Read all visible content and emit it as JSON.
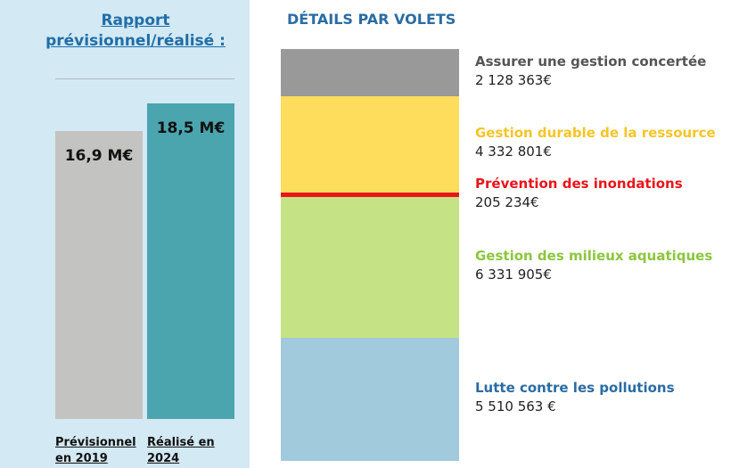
{
  "chart_data": [
    {
      "type": "bar",
      "title": "Rapport prévisionnel/réalisé :",
      "categories": [
        "Prévisionnel en 2019",
        "Réalisé en 2024"
      ],
      "values": [
        16.9,
        18.5
      ],
      "value_labels": [
        "16,9 M€",
        "18,5 M€"
      ],
      "colors": [
        "#c3c3c1",
        "#4aa5ae"
      ]
    },
    {
      "type": "stacked_bar",
      "title": "DÉTAILS PAR VOLETS",
      "series": [
        {
          "name": "Lutte contre les pollutions",
          "color": "#a1cadc",
          "label_color": "#2a6ca3",
          "values": [
            5510563
          ],
          "value_labels": [
            "5 510 563 €"
          ]
        },
        {
          "name": "Gestion des milieux aquatiques",
          "color": "#c5e384",
          "label_color": "#8cc63e",
          "values": [
            6331905
          ],
          "value_labels": [
            "6 331 905€"
          ]
        },
        {
          "name": "Prévention des inondations",
          "color": "#e8151b",
          "label_color": "#e8151b",
          "values": [
            205234
          ],
          "value_labels": [
            "205 234€"
          ]
        },
        {
          "name": "Gestion durable de la ressource",
          "color": "#ffdd5c",
          "label_color": "#f6c428",
          "values": [
            4332801
          ],
          "value_labels": [
            "4 332 801€"
          ]
        },
        {
          "name": "Assurer une gestion concertée",
          "color": "#999999",
          "label_color": "#555555",
          "values": [
            2128363
          ],
          "value_labels": [
            "2 128 363€"
          ]
        }
      ]
    }
  ]
}
